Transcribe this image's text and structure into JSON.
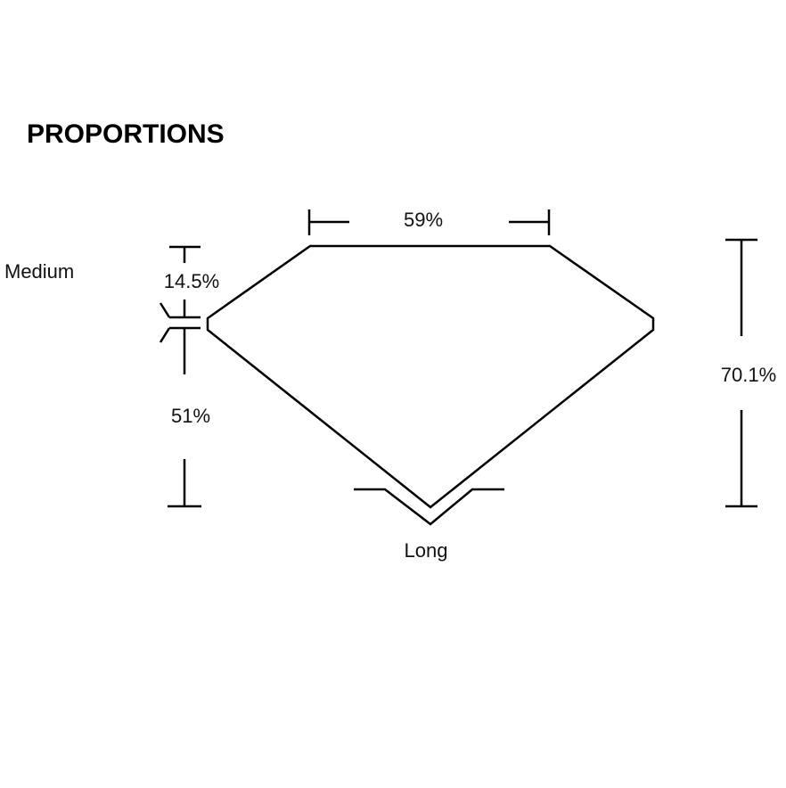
{
  "title": "PROPORTIONS",
  "labels": {
    "table": "59%",
    "crown": "14.5%",
    "pavilion": "51%",
    "total_depth": "70.1%",
    "girdle": "Medium",
    "culet": "Long"
  },
  "colors": {
    "line": "#000000",
    "background": "#ffffff"
  }
}
